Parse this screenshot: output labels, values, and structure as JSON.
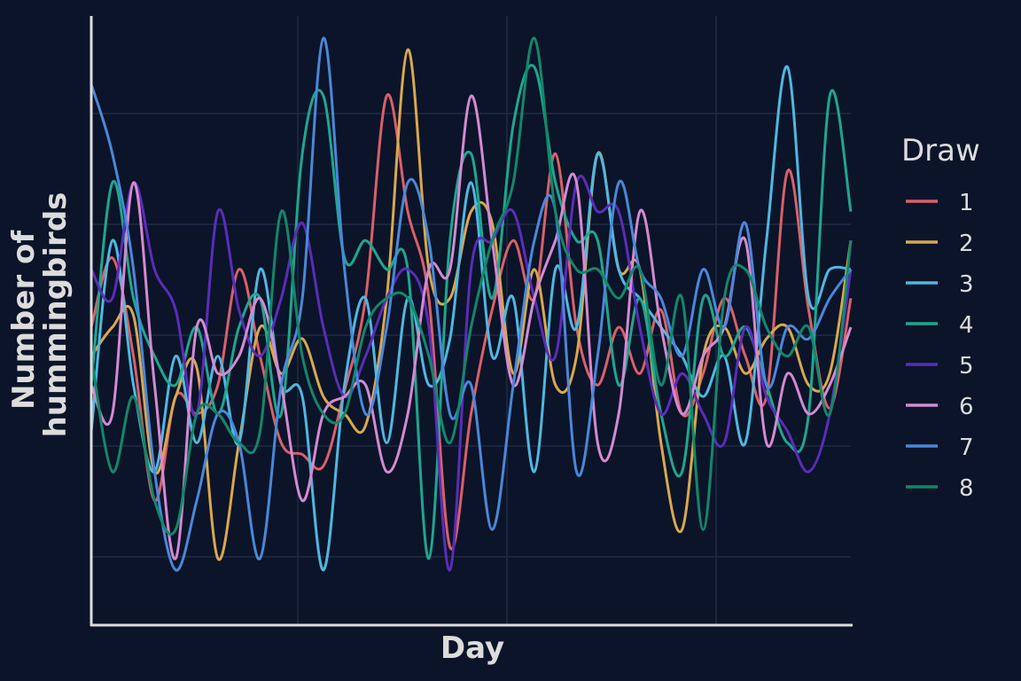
{
  "chart_data": {
    "type": "line",
    "title": "",
    "xlabel": "Day",
    "ylabel": "Number of hummingbirds",
    "ylabel_lines": [
      "Number of",
      "hummingbirds"
    ],
    "x": [
      0,
      1,
      2,
      3,
      4,
      5,
      6,
      7,
      8,
      9,
      10,
      11,
      12,
      13,
      14,
      15,
      16,
      17,
      18,
      19,
      20,
      21,
      22,
      23,
      24,
      25,
      26,
      27,
      28,
      29,
      30,
      31,
      32,
      33,
      34,
      35,
      36
    ],
    "xlim": [
      0,
      36
    ],
    "ylim": [
      0,
      10
    ],
    "grid": true,
    "ticks_shown": false,
    "legend": {
      "title": "Draw",
      "placement": "right"
    },
    "series": [
      {
        "name": "1",
        "color": "#d9606a",
        "values": [
          5.0,
          6.2,
          4.5,
          2.0,
          3.8,
          3.5,
          4.0,
          6.0,
          4.5,
          3.0,
          2.8,
          2.6,
          3.9,
          5.5,
          9.0,
          7.0,
          5.5,
          1.2,
          3.5,
          5.3,
          6.5,
          5.5,
          8.0,
          5.0,
          4.0,
          5.0,
          4.2,
          5.3,
          3.5,
          4.2,
          5.5,
          4.5,
          3.8,
          7.7,
          5.3,
          3.6,
          5.5
        ]
      },
      {
        "name": "2",
        "color": "#d9a84e",
        "values": [
          4.5,
          5.0,
          5.2,
          2.5,
          3.8,
          4.3,
          1.0,
          3.0,
          5.0,
          4.2,
          4.8,
          3.8,
          3.5,
          3.3,
          5.5,
          9.8,
          6.0,
          5.5,
          7.0,
          6.8,
          4.2,
          6.0,
          4.0,
          4.5,
          8.0,
          6.0,
          6.0,
          3.0,
          1.5,
          4.5,
          5.0,
          4.2,
          4.8,
          5.0,
          4.0,
          4.2,
          6.5
        ]
      },
      {
        "name": "3",
        "color": "#4fb8e0",
        "values": [
          3.2,
          6.5,
          4.0,
          2.5,
          4.5,
          3.0,
          4.5,
          3.0,
          6.0,
          4.0,
          3.8,
          0.8,
          4.0,
          5.5,
          3.0,
          5.5,
          4.0,
          4.8,
          7.5,
          4.5,
          5.5,
          2.5,
          6.0,
          5.0,
          8.0,
          6.0,
          5.5,
          5.0,
          4.5,
          3.8,
          4.5,
          3.0,
          6.5,
          9.5,
          5.5,
          6.0,
          6.0
        ]
      },
      {
        "name": "4",
        "color": "#1fa68e",
        "values": [
          4.0,
          7.5,
          5.5,
          4.5,
          4.0,
          5.0,
          3.5,
          5.0,
          5.5,
          3.5,
          8.0,
          9.0,
          6.2,
          6.5,
          6.0,
          6.0,
          1.0,
          6.5,
          8.0,
          5.5,
          8.5,
          9.5,
          7.5,
          6.5,
          6.5,
          4.0,
          5.5,
          3.5,
          2.5,
          5.5,
          4.5,
          5.0,
          4.0,
          3.0,
          3.5,
          9.0,
          7.0
        ]
      },
      {
        "name": "5",
        "color": "#5a2db8",
        "values": [
          6.0,
          5.5,
          7.5,
          6.0,
          5.3,
          3.5,
          7.0,
          5.3,
          4.5,
          5.5,
          6.8,
          5.0,
          3.8,
          4.5,
          5.5,
          6.0,
          5.0,
          0.8,
          6.0,
          6.5,
          7.0,
          5.5,
          4.5,
          7.5,
          7.0,
          7.0,
          5.0,
          3.5,
          4.2,
          3.5,
          3.0,
          5.0,
          3.8,
          3.2,
          2.5,
          3.5,
          6.0
        ]
      },
      {
        "name": "6",
        "color": "#d48ad0",
        "values": [
          4.0,
          3.5,
          7.5,
          4.0,
          1.0,
          5.0,
          4.2,
          4.5,
          5.5,
          4.0,
          2.0,
          3.5,
          3.8,
          4.0,
          2.5,
          3.5,
          6.0,
          6.0,
          9.0,
          6.5,
          4.0,
          5.5,
          6.5,
          7.5,
          3.0,
          3.5,
          7.0,
          5.0,
          3.5,
          4.5,
          5.0,
          6.5,
          3.0,
          4.2,
          3.5,
          4.0,
          5.0
        ]
      },
      {
        "name": "7",
        "color": "#4a88d8",
        "values": [
          9.2,
          8.0,
          6.0,
          2.5,
          0.8,
          2.0,
          3.5,
          3.0,
          1.0,
          4.0,
          5.5,
          10.0,
          6.0,
          3.5,
          5.0,
          7.5,
          6.5,
          3.5,
          4.0,
          1.5,
          4.0,
          6.5,
          7.0,
          2.5,
          4.5,
          7.5,
          6.0,
          5.5,
          4.5,
          6.0,
          5.0,
          6.8,
          4.0,
          5.0,
          4.8,
          5.5,
          6.0
        ]
      },
      {
        "name": "8",
        "color": "#13876a",
        "values": [
          4.5,
          2.5,
          3.8,
          2.0,
          1.5,
          3.5,
          3.5,
          3.0,
          3.2,
          7.0,
          4.5,
          3.5,
          3.5,
          5.0,
          5.5,
          5.5,
          4.5,
          3.0,
          5.0,
          6.5,
          7.5,
          10.0,
          7.0,
          6.0,
          6.0,
          5.5,
          6.0,
          4.0,
          5.5,
          1.5,
          5.5,
          6.0,
          5.0,
          4.5,
          5.0,
          3.5,
          6.5
        ]
      }
    ]
  }
}
